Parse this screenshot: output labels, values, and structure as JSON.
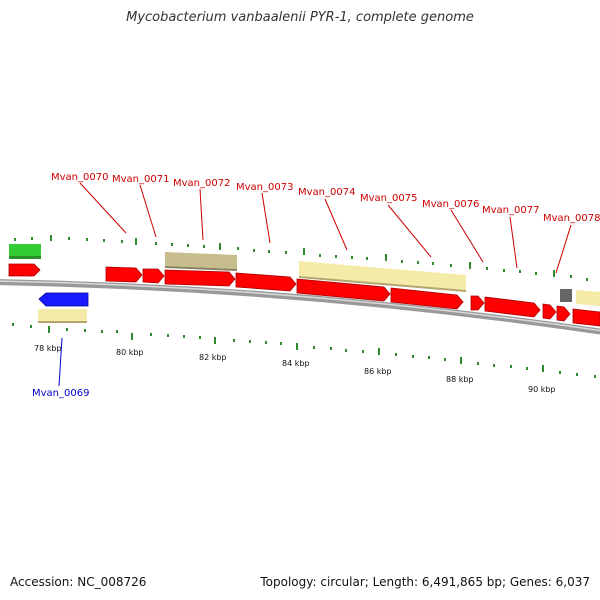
{
  "title": "Mycobacterium vanbaalenii PYR-1, complete genome",
  "footer": {
    "accession": "Accession: NC_008726",
    "summary": "Topology: circular; Length: 6,491,865 bp; Genes: 6,037"
  },
  "colors": {
    "forward_cds": "#ff0000",
    "reverse_cds": "#1a1aff",
    "gene_pale": "#f5eba8",
    "gene_tan": "#c8bd8c",
    "gene_green": "#33cc33",
    "gene_gray": "#666666",
    "label_forward": "#cc0000",
    "label_reverse": "#0000cc",
    "tick": "#2e8b2e",
    "backbone": "#888888"
  },
  "scale_labels": [
    "78 kbp",
    "80 kbp",
    "82 kbp",
    "84 kbp",
    "86 kbp",
    "88 kbp",
    "90 kbp"
  ],
  "gene_labels": [
    {
      "text": "Mvan_0069",
      "strand": "reverse"
    },
    {
      "text": "Mvan_0070",
      "strand": "forward"
    },
    {
      "text": "Mvan_0071",
      "strand": "forward"
    },
    {
      "text": "Mvan_0072",
      "strand": "forward"
    },
    {
      "text": "Mvan_0073",
      "strand": "forward"
    },
    {
      "text": "Mvan_0074",
      "strand": "forward"
    },
    {
      "text": "Mvan_0075",
      "strand": "forward"
    },
    {
      "text": "Mvan_0076",
      "strand": "forward"
    },
    {
      "text": "Mvan_0077",
      "strand": "forward"
    },
    {
      "text": "Mvan_0078",
      "strand": "forward"
    }
  ]
}
